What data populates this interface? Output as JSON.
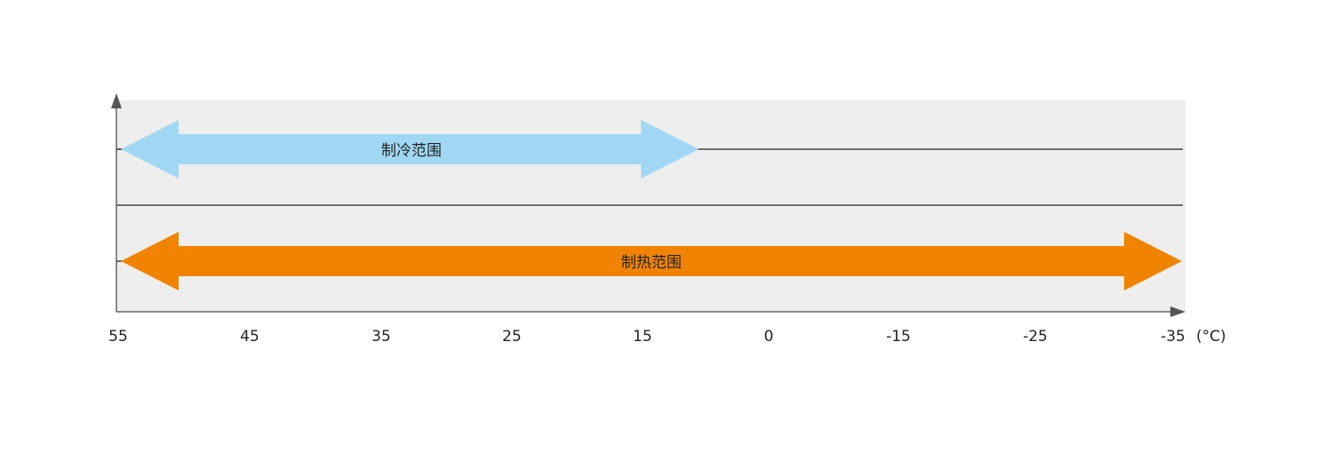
{
  "chart_data": {
    "type": "range-arrows",
    "x_unit": "(°C)",
    "x_ticks": [
      "55",
      "45",
      "35",
      "25",
      "15",
      "0",
      "-15",
      "-25",
      "-35"
    ],
    "ranges": [
      {
        "label": "制冷范围",
        "from": 55,
        "to": 8,
        "color": "#a0d8f4"
      },
      {
        "label": "制热范围",
        "from": 55,
        "to": -35,
        "color": "#f08400"
      }
    ],
    "background": "#eeeeee",
    "axis_color": "#555555"
  }
}
